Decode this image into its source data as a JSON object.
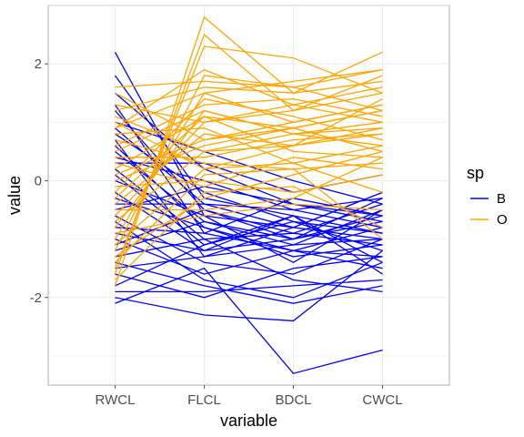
{
  "chart_data": {
    "type": "line",
    "title": "",
    "xlabel": "variable",
    "ylabel": "value",
    "categories": [
      "RWCL",
      "FLCL",
      "BDCL",
      "CWCL"
    ],
    "ylim": [
      -3.5,
      3
    ],
    "y_ticks": [
      "-2",
      "0",
      "2"
    ],
    "grid": true,
    "legend": {
      "title": "sp",
      "position": "right"
    },
    "series": [
      {
        "name": "B",
        "color": "#0000FF",
        "lines": [
          [
            2.2,
            -0.6,
            -0.8,
            -1.0
          ],
          [
            1.8,
            -0.3,
            -0.6,
            -0.9
          ],
          [
            1.5,
            0.2,
            -0.4,
            -0.7
          ],
          [
            1.2,
            -0.5,
            -1.0,
            -0.6
          ],
          [
            1.0,
            0.5,
            0.0,
            -0.4
          ],
          [
            0.8,
            -0.2,
            -0.7,
            -1.2
          ],
          [
            0.6,
            -0.8,
            -1.2,
            -0.8
          ],
          [
            0.4,
            0.0,
            -0.5,
            -0.3
          ],
          [
            0.2,
            -1.0,
            -0.9,
            -1.1
          ],
          [
            0.0,
            -0.6,
            -1.4,
            -0.5
          ],
          [
            -0.2,
            -1.2,
            -0.6,
            -1.4
          ],
          [
            -0.4,
            -0.4,
            -0.8,
            -0.2
          ],
          [
            -0.6,
            -1.4,
            -1.6,
            -1.0
          ],
          [
            -0.8,
            -0.9,
            -0.3,
            -0.6
          ],
          [
            -1.0,
            -1.6,
            -1.2,
            -1.5
          ],
          [
            -1.2,
            -0.7,
            -1.0,
            -0.7
          ],
          [
            -1.4,
            -1.8,
            -2.1,
            -1.8
          ],
          [
            -1.6,
            -2.0,
            -1.5,
            -1.3
          ],
          [
            -1.8,
            -1.1,
            -0.6,
            -1.6
          ],
          [
            -2.0,
            -2.3,
            -2.4,
            -1.2
          ],
          [
            -2.1,
            -1.5,
            -3.3,
            -2.9
          ],
          [
            -1.9,
            -1.9,
            -1.8,
            -1.7
          ],
          [
            -1.5,
            -1.3,
            -1.1,
            -1.0
          ],
          [
            -1.1,
            -0.5,
            -0.9,
            -0.4
          ],
          [
            -0.7,
            -1.7,
            -2.0,
            -1.4
          ],
          [
            -0.3,
            -0.8,
            -1.3,
            -1.1
          ],
          [
            0.1,
            -1.1,
            -0.7,
            -0.9
          ],
          [
            0.5,
            -0.7,
            -1.1,
            -0.5
          ],
          [
            0.9,
            -0.4,
            -0.5,
            -0.8
          ],
          [
            1.3,
            -0.9,
            -1.2,
            -1.3
          ],
          [
            0.3,
            0.3,
            -0.2,
            0.1
          ],
          [
            -0.5,
            -0.1,
            -0.4,
            -0.6
          ],
          [
            -1.3,
            -1.0,
            -1.7,
            -1.9
          ],
          [
            0.7,
            -1.3,
            -0.8,
            -0.2
          ],
          [
            -0.9,
            -1.2,
            -1.0,
            -0.3
          ]
        ]
      },
      {
        "name": "O",
        "color": "#FFA500",
        "lines": [
          [
            -1.8,
            2.8,
            1.5,
            2.2
          ],
          [
            -1.6,
            2.5,
            1.2,
            1.8
          ],
          [
            -1.5,
            2.3,
            2.1,
            1.5
          ],
          [
            -1.2,
            1.8,
            1.6,
            1.9
          ],
          [
            -1.0,
            1.5,
            1.0,
            1.3
          ],
          [
            -0.8,
            1.2,
            0.8,
            1.0
          ],
          [
            -0.6,
            1.0,
            1.3,
            1.6
          ],
          [
            -0.4,
            0.8,
            0.6,
            0.9
          ],
          [
            -0.2,
            1.4,
            1.1,
            0.7
          ],
          [
            0.0,
            0.6,
            0.9,
            1.2
          ],
          [
            0.2,
            1.1,
            0.5,
            0.4
          ],
          [
            0.4,
            0.4,
            0.7,
            0.8
          ],
          [
            0.6,
            1.3,
            1.4,
            1.1
          ],
          [
            0.8,
            0.9,
            0.3,
            0.6
          ],
          [
            1.0,
            0.2,
            0.6,
            1.4
          ],
          [
            1.2,
            1.6,
            1.5,
            1.7
          ],
          [
            1.6,
            1.7,
            1.6,
            1.2
          ],
          [
            1.5,
            0.7,
            0.9,
            0.5
          ],
          [
            1.3,
            1.0,
            1.2,
            1.5
          ],
          [
            1.1,
            0.5,
            0.8,
            0.9
          ],
          [
            0.9,
            1.9,
            1.3,
            1.0
          ],
          [
            0.7,
            0.3,
            0.2,
            0.3
          ],
          [
            0.5,
            1.2,
            0.8,
            0.6
          ],
          [
            0.3,
            -0.1,
            0.4,
            0.2
          ],
          [
            0.1,
            0.7,
            1.0,
            1.3
          ],
          [
            -0.1,
            0.0,
            -0.2,
            0.1
          ],
          [
            -0.3,
            1.1,
            0.9,
            1.2
          ],
          [
            -0.5,
            -0.5,
            -0.3,
            0.4
          ],
          [
            -0.7,
            0.5,
            0.6,
            0.8
          ],
          [
            -0.9,
            -0.6,
            -0.4,
            -0.5
          ],
          [
            -1.1,
            0.2,
            0.3,
            -0.2
          ],
          [
            -1.3,
            -0.3,
            0.1,
            0.5
          ],
          [
            -1.4,
            0.1,
            0.2,
            -1.0
          ],
          [
            -1.7,
            -0.2,
            -0.1,
            -0.8
          ],
          [
            0.9,
            1.5,
            1.7,
            1.9
          ]
        ]
      }
    ]
  }
}
